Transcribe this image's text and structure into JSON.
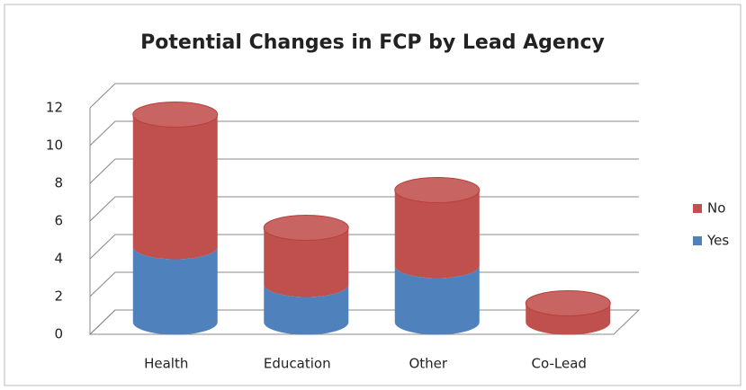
{
  "chart_data": {
    "type": "bar3d_stacked",
    "title": "Potential Changes in FCP by Lead Agency",
    "categories": [
      "Health",
      "Education",
      "Other",
      "Co-Lead"
    ],
    "series": [
      {
        "name": "Yes",
        "color": "#4f81bd",
        "values": [
          4,
          2,
          3,
          0
        ]
      },
      {
        "name": "No",
        "color": "#c0504d",
        "values": [
          7,
          3,
          4,
          1
        ]
      }
    ],
    "ylim": [
      0,
      12
    ],
    "yticks": [
      0,
      2,
      4,
      6,
      8,
      10,
      12
    ],
    "grid": true,
    "legend": "right"
  }
}
